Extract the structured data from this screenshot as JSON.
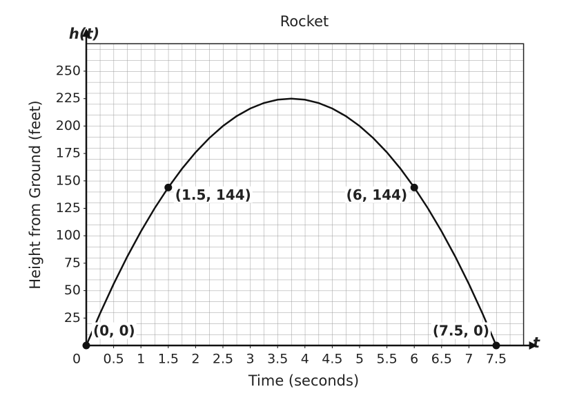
{
  "chart_data": {
    "type": "line",
    "title": "Rocket",
    "xlabel": "Time (seconds)",
    "ylabel": "Height from Ground (feet)",
    "x_axis_name": "t",
    "y_axis_name": "h(t)",
    "xlim": [
      0,
      8
    ],
    "ylim": [
      0,
      275
    ],
    "xticks": [
      0,
      0.5,
      1,
      1.5,
      2,
      2.5,
      3,
      3.5,
      4,
      4.5,
      5,
      5.5,
      6,
      6.5,
      7,
      7.5
    ],
    "yticks": [
      25,
      50,
      75,
      100,
      125,
      150,
      175,
      200,
      225,
      250
    ],
    "grid": true,
    "x": [
      0,
      0.25,
      0.5,
      0.75,
      1,
      1.25,
      1.5,
      1.75,
      2,
      2.25,
      2.5,
      2.75,
      3,
      3.25,
      3.5,
      3.75,
      4,
      4.25,
      4.5,
      4.75,
      5,
      5.25,
      5.5,
      5.75,
      6,
      6.25,
      6.5,
      6.75,
      7,
      7.25,
      7.5
    ],
    "series": [
      {
        "color": "#111111",
        "values": [
          0,
          29,
          56,
          81,
          104,
          125,
          144,
          161,
          176,
          189,
          200,
          209,
          216,
          221,
          224,
          225,
          224,
          221,
          216,
          209,
          200,
          189,
          176,
          161,
          144,
          125,
          104,
          81,
          56,
          29,
          0
        ]
      }
    ],
    "points": [
      {
        "x": 0,
        "y": 0,
        "label": "(0, 0)"
      },
      {
        "x": 1.5,
        "y": 144,
        "label": "(1.5, 144)"
      },
      {
        "x": 6,
        "y": 144,
        "label": "(6, 144)"
      },
      {
        "x": 7.5,
        "y": 0,
        "label": "(7.5, 0)"
      }
    ]
  }
}
